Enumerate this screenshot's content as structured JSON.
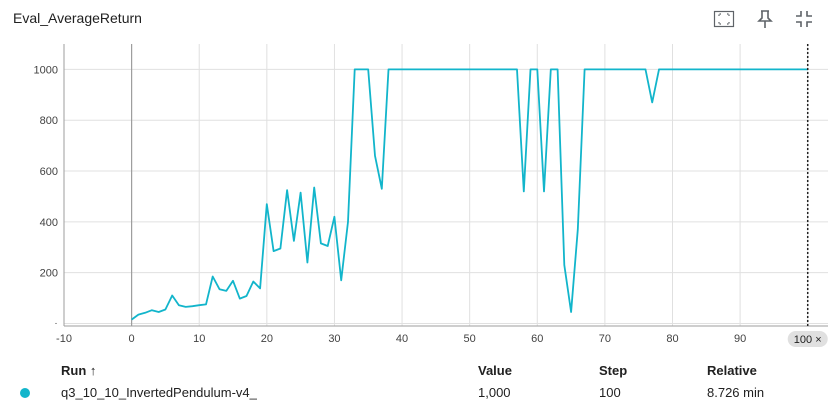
{
  "header": {
    "title": "Eval_AverageReturn",
    "icons": [
      "fit-domain-icon",
      "pin-icon",
      "collapse-icon"
    ]
  },
  "chart_data": {
    "type": "line",
    "xlim": [
      -10,
      103
    ],
    "ylim": [
      -10,
      1100
    ],
    "xticks": [
      "-10",
      "0",
      "10",
      "20",
      "30",
      "40",
      "50",
      "60",
      "70",
      "80",
      "90",
      "100"
    ],
    "yticks": [
      "0",
      "200",
      "400",
      "600",
      "800",
      "1000"
    ],
    "grid": true,
    "color": "#12b5cb",
    "cursor": {
      "x": 100,
      "label": "100 ×"
    },
    "series": [
      {
        "name": "q3_10_10_InvertedPendulum-v4_",
        "x": [
          0,
          1,
          2,
          3,
          4,
          5,
          6,
          7,
          8,
          9,
          10,
          11,
          12,
          13,
          14,
          15,
          16,
          17,
          18,
          19,
          20,
          21,
          22,
          23,
          24,
          25,
          26,
          27,
          28,
          29,
          30,
          31,
          32,
          33,
          34,
          35,
          36,
          37,
          38,
          39,
          40,
          41,
          42,
          43,
          44,
          45,
          46,
          47,
          48,
          49,
          50,
          51,
          52,
          53,
          54,
          55,
          56,
          57,
          58,
          59,
          60,
          61,
          62,
          63,
          64,
          65,
          66,
          67,
          68,
          69,
          70,
          71,
          72,
          73,
          74,
          75,
          76,
          77,
          78,
          79,
          80,
          81,
          82,
          83,
          84,
          85,
          86,
          87,
          88,
          89,
          90,
          91,
          92,
          93,
          94,
          95,
          96,
          97,
          98,
          99,
          100
        ],
        "y": [
          15,
          35,
          42,
          52,
          45,
          55,
          110,
          72,
          65,
          68,
          72,
          75,
          185,
          135,
          128,
          168,
          98,
          108,
          165,
          138,
          470,
          285,
          295,
          525,
          325,
          515,
          240,
          535,
          315,
          305,
          420,
          170,
          400,
          1000,
          1000,
          1000,
          660,
          530,
          1000,
          1000,
          1000,
          1000,
          1000,
          1000,
          1000,
          1000,
          1000,
          1000,
          1000,
          1000,
          1000,
          1000,
          1000,
          1000,
          1000,
          1000,
          1000,
          1000,
          520,
          1000,
          1000,
          520,
          1000,
          1000,
          230,
          45,
          370,
          1000,
          1000,
          1000,
          1000,
          1000,
          1000,
          1000,
          1000,
          1000,
          1000,
          870,
          1000,
          1000,
          1000,
          1000,
          1000,
          1000,
          1000,
          1000,
          1000,
          1000,
          1000,
          1000,
          1000,
          1000,
          1000,
          1000,
          1000,
          1000,
          1000,
          1000,
          1000,
          1000,
          1000
        ]
      }
    ]
  },
  "table": {
    "headers": {
      "run": "Run ↑",
      "value": "Value",
      "step": "Step",
      "relative": "Relative"
    },
    "rows": [
      {
        "run": "q3_10_10_InvertedPendulum-v4_",
        "value": "1,000",
        "step": "100",
        "relative": "8.726 min",
        "color": "#12b5cb"
      }
    ]
  }
}
